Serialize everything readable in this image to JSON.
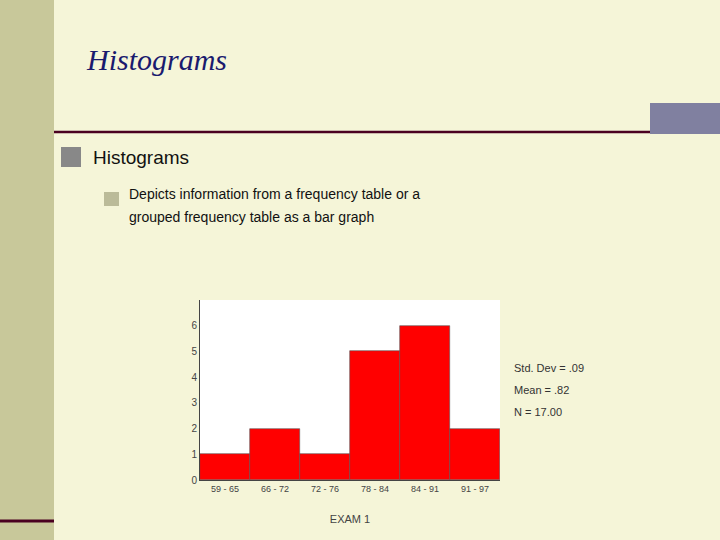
{
  "chart_data": {
    "type": "bar",
    "title": "Histograms",
    "annotations": [
      "Histograms",
      "Depicts information from a frequency table or a",
      "grouped frequency table as a bar graph",
      "Std. Dev = .09",
      "Mean = .82",
      "N = 17.00"
    ],
    "xlabel": "EXAM 1",
    "categories": [
      "59 - 65",
      "66 - 72",
      "72 - 76",
      "78 - 84",
      "84 - 91",
      "91 - 97"
    ],
    "values": [
      1,
      2,
      1,
      5,
      6,
      2
    ],
    "color": "#ff0000",
    "ylim": [
      0,
      7
    ],
    "yticks": [
      0,
      1,
      2,
      3,
      4,
      5,
      6
    ],
    "grid": false
  }
}
